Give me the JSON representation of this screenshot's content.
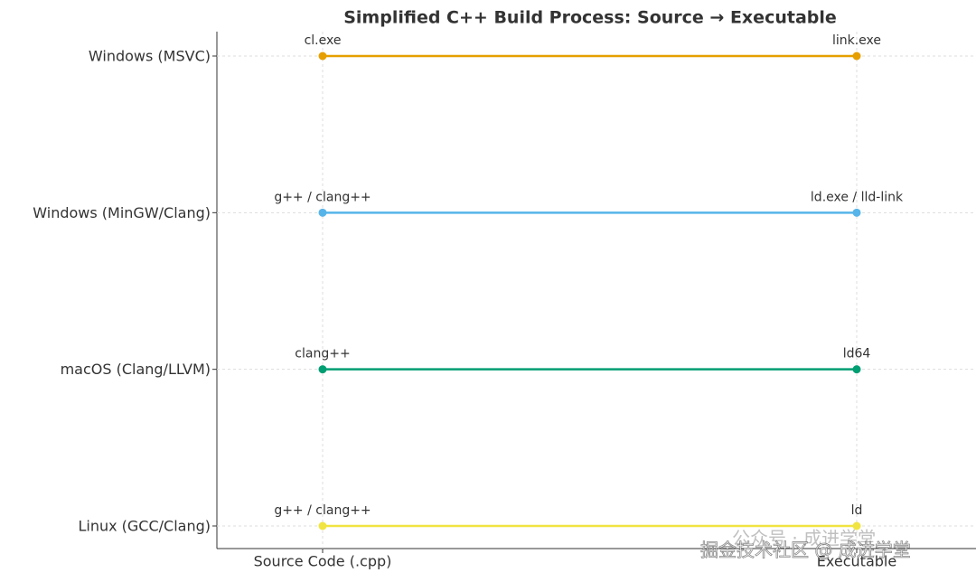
{
  "chart_data": {
    "type": "dumbbell",
    "title": "Simplified C++ Build Process: Source → Executable",
    "x_categories": [
      "Source Code (.cpp)",
      "Executable"
    ],
    "series": [
      {
        "name": "Windows (MSVC)",
        "color": "#e69f00",
        "labels": [
          "cl.exe",
          "link.exe"
        ]
      },
      {
        "name": "Windows (MinGW/Clang)",
        "color": "#56b4e9",
        "labels": [
          "g++ / clang++",
          "ld.exe / lld-link"
        ]
      },
      {
        "name": "macOS (Clang/LLVM)",
        "color": "#009e73",
        "labels": [
          "clang++",
          "ld64"
        ]
      },
      {
        "name": "Linux (GCC/Clang)",
        "color": "#f0e442",
        "labels": [
          "g++ / clang++",
          "ld"
        ]
      }
    ],
    "grid": true,
    "watermarks": [
      "公众号 · 成进学堂",
      "掘金技术社区 @ 成进学堂"
    ]
  }
}
